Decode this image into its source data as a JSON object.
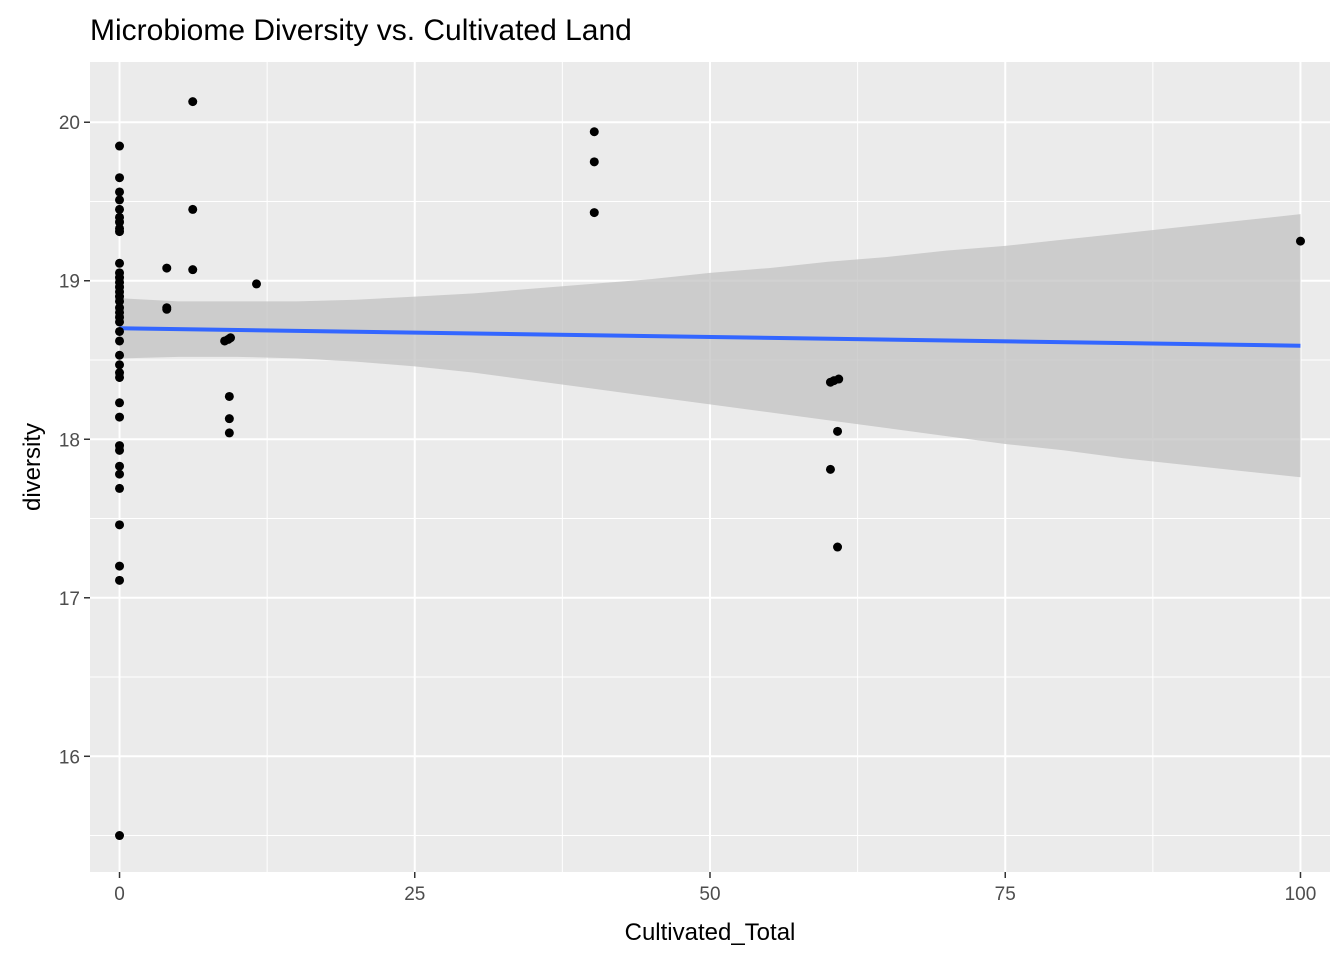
{
  "chart_data": {
    "type": "scatter",
    "title": "Microbiome Diversity vs. Cultivated Land",
    "xlabel": "Cultivated_Total",
    "ylabel": "diversity",
    "xlim": [
      -2.5,
      102.5
    ],
    "ylim": [
      15.27,
      20.38
    ],
    "x_ticks": [
      0,
      25,
      50,
      75,
      100
    ],
    "x_tick_labels": [
      "0",
      "25",
      "50",
      "75",
      "100"
    ],
    "y_ticks": [
      16,
      17,
      18,
      19,
      20
    ],
    "y_tick_labels": [
      "16",
      "17",
      "18",
      "19",
      "20"
    ],
    "grid": true,
    "legend": "none",
    "colors": {
      "panel": "#ebebeb",
      "grid": "#ffffff",
      "points": "#000000",
      "fit_line": "#3366ff",
      "ribbon": "#c2c2c2"
    },
    "points": [
      {
        "x": 0,
        "y": 19.85
      },
      {
        "x": 0,
        "y": 19.65
      },
      {
        "x": 0,
        "y": 19.56
      },
      {
        "x": 0,
        "y": 19.51
      },
      {
        "x": 0,
        "y": 19.45
      },
      {
        "x": 0,
        "y": 19.4
      },
      {
        "x": 0,
        "y": 19.37
      },
      {
        "x": 0,
        "y": 19.33
      },
      {
        "x": 0,
        "y": 19.31
      },
      {
        "x": 0,
        "y": 19.11
      },
      {
        "x": 0,
        "y": 19.05
      },
      {
        "x": 0,
        "y": 19.02
      },
      {
        "x": 0,
        "y": 18.99
      },
      {
        "x": 0,
        "y": 18.96
      },
      {
        "x": 0,
        "y": 18.93
      },
      {
        "x": 0,
        "y": 18.9
      },
      {
        "x": 0,
        "y": 18.87
      },
      {
        "x": 0,
        "y": 18.83
      },
      {
        "x": 0,
        "y": 18.8
      },
      {
        "x": 0,
        "y": 18.77
      },
      {
        "x": 0,
        "y": 18.74
      },
      {
        "x": 0,
        "y": 18.68
      },
      {
        "x": 0,
        "y": 18.62
      },
      {
        "x": 0,
        "y": 18.53
      },
      {
        "x": 0,
        "y": 18.47
      },
      {
        "x": 0,
        "y": 18.42
      },
      {
        "x": 0,
        "y": 18.39
      },
      {
        "x": 0,
        "y": 18.23
      },
      {
        "x": 0,
        "y": 18.14
      },
      {
        "x": 0,
        "y": 17.96
      },
      {
        "x": 0,
        "y": 17.93
      },
      {
        "x": 0,
        "y": 17.83
      },
      {
        "x": 0,
        "y": 17.78
      },
      {
        "x": 0,
        "y": 17.69
      },
      {
        "x": 0,
        "y": 17.46
      },
      {
        "x": 0,
        "y": 17.2
      },
      {
        "x": 0,
        "y": 17.11
      },
      {
        "x": 0,
        "y": 15.5
      },
      {
        "x": 4,
        "y": 19.08
      },
      {
        "x": 4,
        "y": 18.83
      },
      {
        "x": 4,
        "y": 18.82
      },
      {
        "x": 6.2,
        "y": 20.13
      },
      {
        "x": 6.2,
        "y": 19.45
      },
      {
        "x": 6.2,
        "y": 19.07
      },
      {
        "x": 8.9,
        "y": 18.62
      },
      {
        "x": 9.2,
        "y": 18.63
      },
      {
        "x": 9.4,
        "y": 18.64
      },
      {
        "x": 9.3,
        "y": 18.27
      },
      {
        "x": 9.3,
        "y": 18.13
      },
      {
        "x": 9.3,
        "y": 18.04
      },
      {
        "x": 11.6,
        "y": 18.98
      },
      {
        "x": 40.2,
        "y": 19.94
      },
      {
        "x": 40.2,
        "y": 19.75
      },
      {
        "x": 40.2,
        "y": 19.43
      },
      {
        "x": 60.2,
        "y": 18.36
      },
      {
        "x": 60.5,
        "y": 18.37
      },
      {
        "x": 60.9,
        "y": 18.38
      },
      {
        "x": 60.8,
        "y": 18.05
      },
      {
        "x": 60.2,
        "y": 17.81
      },
      {
        "x": 60.8,
        "y": 17.32
      },
      {
        "x": 100,
        "y": 19.25
      }
    ],
    "fit": {
      "x": [
        0,
        100
      ],
      "y": [
        18.7,
        18.59
      ]
    },
    "ribbon": {
      "x": [
        0,
        5,
        10,
        15,
        20,
        25,
        30,
        35,
        40,
        45,
        50,
        55,
        60,
        65,
        70,
        75,
        80,
        85,
        90,
        95,
        100
      ],
      "upper": [
        18.89,
        18.87,
        18.87,
        18.87,
        18.88,
        18.9,
        18.92,
        18.95,
        18.98,
        19.01,
        19.05,
        19.08,
        19.12,
        19.15,
        19.19,
        19.22,
        19.26,
        19.3,
        19.34,
        19.38,
        19.42
      ],
      "lower": [
        18.51,
        18.52,
        18.52,
        18.51,
        18.49,
        18.46,
        18.42,
        18.37,
        18.32,
        18.27,
        18.22,
        18.17,
        18.12,
        18.07,
        18.02,
        17.97,
        17.93,
        17.88,
        17.84,
        17.8,
        17.76
      ]
    }
  }
}
